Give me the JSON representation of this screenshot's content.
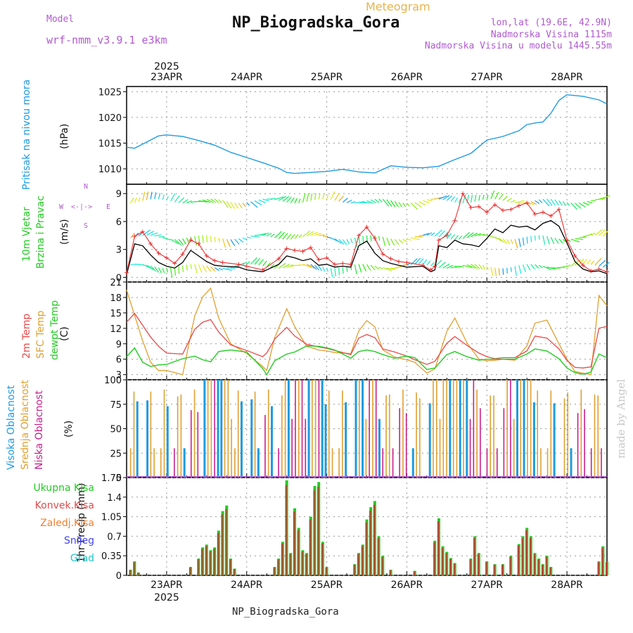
{
  "header": {
    "model_label": "Model",
    "model_name": "wrf-nmm_v3.9.1 e3km",
    "subtitle": "Meteogram",
    "title": "NP_Biogradska_Gora",
    "coords": "lon,lat (19.6E, 42.9N)",
    "elevation": "Nadmorska Visina 1115m",
    "model_elevation": "Nadmorska Visina u modelu 1445.55m",
    "footer": "NP_Biogradska_Gora",
    "watermark": "made by Angel"
  },
  "colors": {
    "pressure": "#1e9be0",
    "wind_speed": "#000000",
    "wind_gust": "#e83030",
    "temp2m": "#e84a4a",
    "sfc": "#e0a030",
    "dew": "#22cc22",
    "high_cloud": "#1e9be0",
    "mid_cloud": "#e0a030",
    "low_cloud": "#c8208c",
    "precip": "#22cc22",
    "convective": "#c83030"
  },
  "chart_data": [
    {
      "type": "line",
      "id": "pressure",
      "ylabel": "Pritisak na nivou mora",
      "unit": "(hPa)",
      "ylim": [
        1007,
        1026
      ],
      "yticks": [
        1010,
        1015,
        1020,
        1025
      ],
      "x_start_day": 22.5,
      "x_end_day": 28.5,
      "series": [
        {
          "name": "pressure",
          "x": [
            22.5,
            22.6,
            22.75,
            22.9,
            23.0,
            23.2,
            23.4,
            23.6,
            23.8,
            24.0,
            24.2,
            24.4,
            24.5,
            24.6,
            24.8,
            25.0,
            25.2,
            25.4,
            25.6,
            25.8,
            26.0,
            26.2,
            26.4,
            26.6,
            26.8,
            27.0,
            27.2,
            27.4,
            27.5,
            27.6,
            27.7,
            27.8,
            27.9,
            28.0,
            28.2,
            28.4,
            28.5
          ],
          "values": [
            1014.2,
            1014.0,
            1015.2,
            1016.4,
            1016.6,
            1016.3,
            1015.5,
            1014.6,
            1013.2,
            1012.2,
            1011.2,
            1010.1,
            1009.3,
            1009.1,
            1009.3,
            1009.5,
            1009.9,
            1009.4,
            1009.2,
            1010.6,
            1010.3,
            1010.2,
            1010.5,
            1011.8,
            1013.0,
            1015.6,
            1016.3,
            1017.4,
            1018.6,
            1018.9,
            1019.1,
            1020.8,
            1023.3,
            1024.4,
            1024.1,
            1023.4,
            1022.6
          ]
        }
      ]
    },
    {
      "type": "line",
      "id": "wind",
      "ylabel": "10m Vjetar",
      "ylabel2": "Brzina i Pravac",
      "unit": "(m/s)",
      "compass": [
        "N",
        "E",
        "S",
        "W"
      ],
      "ylim": [
        -0.5,
        10
      ],
      "yticks": [
        0,
        3,
        6,
        9
      ],
      "series": [
        {
          "name": "speed",
          "x": [
            22.5,
            22.6,
            22.7,
            22.8,
            22.9,
            23.0,
            23.1,
            23.2,
            23.3,
            23.4,
            23.5,
            23.6,
            23.7,
            23.9,
            24.0,
            24.2,
            24.4,
            24.5,
            24.6,
            24.7,
            24.8,
            24.9,
            25.0,
            25.1,
            25.2,
            25.3,
            25.4,
            25.5,
            25.6,
            25.7,
            25.8,
            25.9,
            26.0,
            26.2,
            26.3,
            26.35,
            26.4,
            26.5,
            26.6,
            26.7,
            26.8,
            26.9,
            27.0,
            27.1,
            27.2,
            27.3,
            27.4,
            27.5,
            27.6,
            27.7,
            27.8,
            27.9,
            28.0,
            28.1,
            28.2,
            28.3,
            28.4,
            28.5
          ],
          "values": [
            0.3,
            3.6,
            3.4,
            2.4,
            1.6,
            1.2,
            1.0,
            1.6,
            2.9,
            2.3,
            1.7,
            1.3,
            1.2,
            1.1,
            0.8,
            0.6,
            1.4,
            2.3,
            2.1,
            1.8,
            2.0,
            1.3,
            1.4,
            1.1,
            1.2,
            1.1,
            3.4,
            3.9,
            2.6,
            1.8,
            1.5,
            1.3,
            1.1,
            1.2,
            0.6,
            0.8,
            3.4,
            3.2,
            4.0,
            3.6,
            3.5,
            3.3,
            4.2,
            5.2,
            4.8,
            5.6,
            5.4,
            5.5,
            5.1,
            5.8,
            6.1,
            5.5,
            3.7,
            1.7,
            0.9,
            0.6,
            0.7,
            0.4
          ]
        },
        {
          "name": "gust",
          "x": [
            22.5,
            22.6,
            22.7,
            22.8,
            22.9,
            23.0,
            23.1,
            23.2,
            23.3,
            23.4,
            23.5,
            23.6,
            23.7,
            23.9,
            24.0,
            24.2,
            24.4,
            24.5,
            24.6,
            24.7,
            24.8,
            24.9,
            25.0,
            25.1,
            25.2,
            25.3,
            25.4,
            25.5,
            25.6,
            25.7,
            25.8,
            25.9,
            26.0,
            26.2,
            26.3,
            26.35,
            26.4,
            26.5,
            26.6,
            26.7,
            26.8,
            26.9,
            27.0,
            27.1,
            27.2,
            27.3,
            27.4,
            27.5,
            27.6,
            27.7,
            27.8,
            27.9,
            28.0,
            28.1,
            28.2,
            28.3,
            28.4,
            28.5
          ],
          "values": [
            0.5,
            4.4,
            4.9,
            3.6,
            2.6,
            2.1,
            1.5,
            2.5,
            4.0,
            3.6,
            2.3,
            1.8,
            1.6,
            1.4,
            1.2,
            0.8,
            2.0,
            3.1,
            2.9,
            2.8,
            3.2,
            1.9,
            2.1,
            1.4,
            1.5,
            1.4,
            4.5,
            5.4,
            4.2,
            2.5,
            2.0,
            1.7,
            1.6,
            1.3,
            0.8,
            1.2,
            4.0,
            4.5,
            6.1,
            9.0,
            7.5,
            7.6,
            7.0,
            7.8,
            7.2,
            7.3,
            7.7,
            8.0,
            6.8,
            7.0,
            6.6,
            7.3,
            4.0,
            2.3,
            1.3,
            0.7,
            0.9,
            0.6
          ]
        }
      ]
    },
    {
      "type": "line",
      "id": "temperature",
      "ylabel": "2m Temp",
      "ylabel2": "SFC Temp",
      "ylabel3": "dewpt Temp",
      "unit": "(C)",
      "ylim": [
        2,
        21
      ],
      "yticks": [
        3,
        6,
        9,
        12,
        15,
        18,
        21
      ],
      "series": [
        {
          "name": "sfc",
          "x": [
            22.5,
            22.6,
            22.7,
            22.8,
            22.9,
            23.0,
            23.2,
            23.35,
            23.45,
            23.55,
            23.65,
            23.8,
            24.0,
            24.2,
            24.25,
            24.35,
            24.5,
            24.6,
            24.75,
            24.9,
            25.0,
            25.1,
            25.3,
            25.4,
            25.5,
            25.6,
            25.7,
            25.85,
            26.0,
            26.1,
            26.25,
            26.35,
            26.5,
            26.6,
            26.75,
            26.9,
            27.0,
            27.1,
            27.2,
            27.35,
            27.5,
            27.6,
            27.75,
            27.9,
            28.0,
            28.1,
            28.2,
            28.3,
            28.4,
            28.5
          ],
          "values": [
            19.5,
            14.5,
            9.6,
            5.4,
            3.8,
            3.8,
            3.0,
            14.4,
            18.1,
            19.8,
            14.0,
            9.0,
            7.1,
            4.6,
            3.8,
            10.2,
            15.8,
            12.3,
            8.5,
            7.8,
            7.6,
            7.3,
            7.1,
            11.5,
            13.5,
            12.3,
            7.8,
            6.4,
            5.9,
            5.4,
            3.3,
            4.1,
            11.4,
            14.0,
            9.2,
            6.0,
            5.7,
            5.8,
            6.0,
            5.8,
            8.6,
            13.0,
            13.6,
            9.0,
            6.0,
            3.6,
            3.3,
            3.0,
            18.4,
            16.4
          ]
        },
        {
          "name": "temp2m",
          "x": [
            22.5,
            22.6,
            22.7,
            22.8,
            22.9,
            23.0,
            23.2,
            23.35,
            23.45,
            23.55,
            23.65,
            23.8,
            24.0,
            24.2,
            24.25,
            24.35,
            24.5,
            24.6,
            24.75,
            24.9,
            25.0,
            25.1,
            25.3,
            25.4,
            25.5,
            25.6,
            25.7,
            25.85,
            26.0,
            26.1,
            26.25,
            26.35,
            26.5,
            26.6,
            26.75,
            26.9,
            27.0,
            27.1,
            27.2,
            27.35,
            27.5,
            27.6,
            27.75,
            27.9,
            28.0,
            28.1,
            28.2,
            28.3,
            28.4,
            28.5
          ],
          "values": [
            13.2,
            14.9,
            12.6,
            10.3,
            8.5,
            7.2,
            7.0,
            11.8,
            13.2,
            13.7,
            11.3,
            8.8,
            7.7,
            6.5,
            7.2,
            9.9,
            12.2,
            10.5,
            8.9,
            8.4,
            8.1,
            7.7,
            6.9,
            10.1,
            10.8,
            10.2,
            8.0,
            7.4,
            6.6,
            5.9,
            5.0,
            5.6,
            9.1,
            10.4,
            8.7,
            7.2,
            6.5,
            6.1,
            6.3,
            6.3,
            7.6,
            10.5,
            10.1,
            8.0,
            5.8,
            4.4,
            4.3,
            4.5,
            12.0,
            12.4
          ]
        },
        {
          "name": "dew",
          "x": [
            22.5,
            22.6,
            22.7,
            22.8,
            22.9,
            23.0,
            23.2,
            23.35,
            23.45,
            23.55,
            23.65,
            23.8,
            24.0,
            24.2,
            24.25,
            24.35,
            24.5,
            24.6,
            24.75,
            24.9,
            25.0,
            25.1,
            25.3,
            25.4,
            25.5,
            25.6,
            25.7,
            25.85,
            26.0,
            26.1,
            26.25,
            26.35,
            26.5,
            26.6,
            26.75,
            26.9,
            27.0,
            27.1,
            27.2,
            27.35,
            27.5,
            27.6,
            27.75,
            27.9,
            28.0,
            28.1,
            28.2,
            28.3,
            28.4,
            28.5
          ],
          "values": [
            6.5,
            8.2,
            5.4,
            4.6,
            4.9,
            5.0,
            6.1,
            6.6,
            5.9,
            5.5,
            7.5,
            7.8,
            7.4,
            4.2,
            3.0,
            5.7,
            7.0,
            7.4,
            8.6,
            8.5,
            8.2,
            7.8,
            6.2,
            7.5,
            7.8,
            7.5,
            6.9,
            6.2,
            6.6,
            6.3,
            4.0,
            4.3,
            6.9,
            7.5,
            6.5,
            5.8,
            6.0,
            6.0,
            6.0,
            6.0,
            7.0,
            8.0,
            7.6,
            6.1,
            4.3,
            3.4,
            3.1,
            3.5,
            7.0,
            6.3
          ]
        }
      ]
    },
    {
      "type": "bar",
      "id": "clouds",
      "ylabel": "Visoka Oblacnost",
      "ylabel2": "Srednja Oblacnost",
      "ylabel3": "Niska Oblacnost",
      "unit": "(%)",
      "ylim": [
        0,
        100
      ],
      "yticks": [
        0,
        25,
        50,
        75,
        100
      ]
    },
    {
      "type": "bar",
      "id": "precip",
      "ylabel": "1hr Precip (mm)",
      "legend": [
        "Ukupna Kisa",
        "Konvek.Kisa",
        "Zaledj.Kisa",
        "Snijeg",
        "Grad"
      ],
      "ylim": [
        0,
        1.75
      ],
      "yticks": [
        0,
        0.35,
        0.7,
        1.05,
        1.4,
        1.75
      ],
      "x": [
        22.55,
        22.6,
        22.65,
        23.3,
        23.4,
        23.45,
        23.5,
        23.55,
        23.6,
        23.65,
        23.7,
        23.75,
        23.8,
        23.85,
        24.35,
        24.4,
        24.45,
        24.5,
        24.55,
        24.6,
        24.65,
        24.7,
        24.75,
        24.8,
        24.85,
        24.9,
        24.95,
        25.0,
        25.35,
        25.4,
        25.45,
        25.5,
        25.55,
        25.6,
        25.65,
        25.7,
        25.8,
        26.1,
        26.35,
        26.4,
        26.45,
        26.5,
        26.55,
        26.6,
        26.8,
        26.85,
        26.9,
        27.0,
        27.1,
        27.2,
        27.3,
        27.4,
        27.45,
        27.5,
        27.55,
        27.6,
        27.65,
        27.7,
        27.75,
        27.8,
        28.4,
        28.45,
        28.5
      ],
      "values": [
        0.1,
        0.25,
        0.05,
        0.15,
        0.3,
        0.5,
        0.55,
        0.45,
        0.5,
        0.8,
        1.15,
        1.25,
        0.3,
        0.12,
        0.15,
        0.3,
        0.6,
        1.7,
        0.4,
        1.2,
        0.85,
        0.45,
        0.4,
        1.05,
        1.6,
        1.67,
        0.6,
        0.15,
        0.2,
        0.4,
        0.55,
        1.0,
        1.22,
        1.33,
        0.7,
        0.35,
        0.1,
        0.08,
        0.62,
        1.02,
        0.52,
        0.42,
        0.31,
        0.22,
        0.3,
        0.7,
        0.4,
        0.25,
        0.2,
        0.2,
        0.35,
        0.56,
        0.7,
        0.85,
        0.7,
        0.4,
        0.3,
        0.2,
        0.35,
        0.15,
        0.25,
        0.52,
        0.25
      ]
    }
  ],
  "xaxis": {
    "days": [
      {
        "d": 23,
        "label": "23APR"
      },
      {
        "d": 24,
        "label": "24APR"
      },
      {
        "d": 25,
        "label": "25APR"
      },
      {
        "d": 26,
        "label": "26APR"
      },
      {
        "d": 27,
        "label": "27APR"
      },
      {
        "d": 28,
        "label": "28APR"
      }
    ],
    "year": "2025"
  }
}
